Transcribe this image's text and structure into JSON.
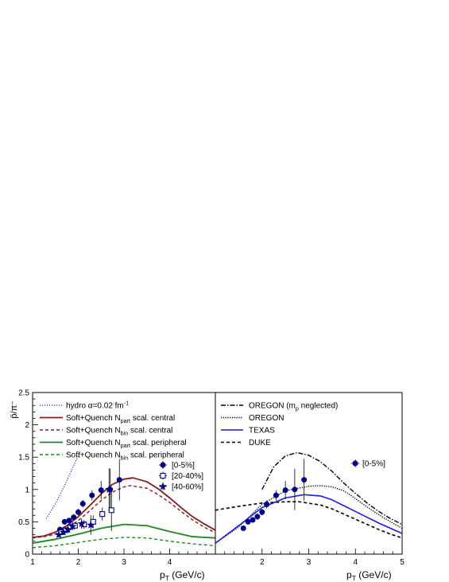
{
  "chart_data": [
    {
      "type": "line",
      "panel": "left",
      "xlabel_main": "p",
      "xlabel_sub": "T",
      "xlabel_unit": " (GeV/c)",
      "ylabel": "p̄/π⁻",
      "xlim": [
        1,
        5
      ],
      "ylim": [
        0,
        2.5
      ],
      "x_ticks": [
        1,
        2,
        3,
        4
      ],
      "y_ticks": [
        0,
        0.5,
        1,
        1.5,
        2,
        2.5
      ],
      "y_tick_labels": [
        "0",
        "0.5",
        "1",
        "1.5",
        "2",
        "2.5"
      ],
      "legend_position": "top-left",
      "curves": [
        {
          "legend_parts": [
            "hydro α=0.02 fm",
            "-1",
            ""
          ],
          "color": "#2222cc",
          "dash": "1.2,1.8",
          "width": 1.2,
          "x": [
            1.3,
            1.5,
            1.7,
            1.9,
            2.05
          ],
          "y": [
            0.55,
            0.78,
            1.06,
            1.37,
            1.6
          ]
        },
        {
          "legend_parts": [
            "Soft+Quench N",
            "part",
            " scal. central"
          ],
          "color": "#8b1a1a",
          "dash": "",
          "width": 1.8,
          "x": [
            1,
            1.25,
            1.5,
            1.75,
            2,
            2.25,
            2.5,
            2.75,
            3,
            3.2,
            3.5,
            3.75,
            4,
            4.25,
            4.5,
            4.75,
            5
          ],
          "y": [
            0.26,
            0.28,
            0.34,
            0.44,
            0.58,
            0.75,
            0.93,
            1.08,
            1.16,
            1.18,
            1.12,
            1.01,
            0.87,
            0.72,
            0.58,
            0.47,
            0.37
          ]
        },
        {
          "legend_parts": [
            "Soft+Quench N",
            "bin",
            " scal. central"
          ],
          "color": "#8b1a1a",
          "dash": "4,3",
          "width": 1.4,
          "x": [
            1,
            1.25,
            1.5,
            1.75,
            2,
            2.25,
            2.5,
            2.75,
            3,
            3.15,
            3.5,
            3.75,
            4,
            4.25,
            4.5,
            4.75,
            5
          ],
          "y": [
            0.25,
            0.27,
            0.31,
            0.4,
            0.52,
            0.67,
            0.83,
            0.96,
            1.04,
            1.06,
            1.02,
            0.92,
            0.8,
            0.66,
            0.53,
            0.42,
            0.33
          ]
        },
        {
          "legend_parts": [
            "Soft+Quench N",
            "part",
            " scal. peripheral"
          ],
          "color": "#1a8a1a",
          "dash": "",
          "width": 1.8,
          "x": [
            1,
            1.5,
            2,
            2.5,
            3,
            3.5,
            4,
            4.5,
            5
          ],
          "y": [
            0.17,
            0.23,
            0.31,
            0.4,
            0.46,
            0.44,
            0.35,
            0.27,
            0.25
          ]
        },
        {
          "legend_parts": [
            "Soft+Quench N",
            "bin",
            " scal. peripheral"
          ],
          "color": "#1a8a1a",
          "dash": "4,3",
          "width": 1.4,
          "x": [
            1,
            1.5,
            2,
            2.5,
            3,
            3.5,
            4,
            4.5,
            5
          ],
          "y": [
            0.1,
            0.13,
            0.18,
            0.23,
            0.26,
            0.25,
            0.2,
            0.16,
            0.13
          ]
        }
      ],
      "data_series": [
        {
          "name": "[0-5%]",
          "marker": "circle",
          "x": [
            1.6,
            1.7,
            1.8,
            1.9,
            2.0,
            2.1,
            2.3,
            2.5,
            2.7,
            2.9
          ],
          "y": [
            0.38,
            0.5,
            0.52,
            0.57,
            0.65,
            0.78,
            0.91,
            0.99,
            1.0,
            1.15
          ],
          "err": [
            0.04,
            0.04,
            0.04,
            0.05,
            0.05,
            0.06,
            0.08,
            0.14,
            0.32,
            0.32
          ]
        },
        {
          "name": "[20-40%]",
          "marker": "open-square",
          "x": [
            1.6,
            1.7,
            1.8,
            1.9,
            2.1,
            2.3,
            2.5,
            2.7
          ],
          "y": [
            0.34,
            0.37,
            0.42,
            0.44,
            0.46,
            0.5,
            0.62,
            0.68
          ],
          "err": [
            0.04,
            0.04,
            0.05,
            0.05,
            0.07,
            0.1,
            0.1,
            0.32
          ]
        },
        {
          "name": "[40-60%]",
          "marker": "star",
          "x": [
            1.6,
            1.7,
            1.8,
            1.9,
            2.1,
            2.3,
            2.7
          ],
          "y": [
            0.3,
            0.34,
            0.38,
            0.43,
            0.47,
            0.45,
            1.0
          ],
          "err": [
            0.04,
            0.04,
            0.05,
            0.05,
            0.08,
            0.15,
            0.33
          ]
        }
      ]
    },
    {
      "type": "line",
      "panel": "right",
      "xlabel_main": "p",
      "xlabel_sub": "T",
      "xlabel_unit": " (GeV/c)",
      "xlim": [
        1,
        5
      ],
      "ylim": [
        0,
        2.5
      ],
      "x_ticks": [
        2,
        3,
        4,
        5
      ],
      "legend_position": "top",
      "curves": [
        {
          "legend_parts": [
            "OREGON (m",
            "p",
            " neglected)"
          ],
          "color": "#000000",
          "dash": "6,2,1.5,2",
          "width": 1.4,
          "x": [
            2,
            2.25,
            2.5,
            2.75,
            3,
            3.25,
            3.5,
            3.75,
            4,
            4.25,
            4.5,
            4.75,
            5
          ],
          "y": [
            1.0,
            1.35,
            1.52,
            1.57,
            1.53,
            1.43,
            1.28,
            1.1,
            0.94,
            0.79,
            0.66,
            0.55,
            0.46
          ]
        },
        {
          "legend_parts": [
            "OREGON",
            "",
            ""
          ],
          "color": "#000000",
          "dash": "1.2,1.6",
          "width": 1.4,
          "x": [
            1,
            1.5,
            2,
            2.5,
            3,
            3.25,
            3.5,
            3.75,
            4,
            4.25,
            4.5,
            4.75,
            5
          ],
          "y": [
            0.17,
            0.42,
            0.77,
            0.98,
            1.05,
            1.06,
            1.04,
            0.98,
            0.86,
            0.73,
            0.61,
            0.5,
            0.4
          ]
        },
        {
          "legend_parts": [
            "TEXAS",
            "",
            ""
          ],
          "color": "#1a1aee",
          "dash": "",
          "width": 1.6,
          "x": [
            1,
            1.5,
            2,
            2.5,
            2.9,
            3.25,
            3.5,
            3.75,
            4,
            4.25,
            4.5,
            4.75,
            5
          ],
          "y": [
            0.17,
            0.44,
            0.72,
            0.87,
            0.92,
            0.9,
            0.84,
            0.75,
            0.66,
            0.57,
            0.48,
            0.4,
            0.32
          ]
        },
        {
          "legend_parts": [
            "DUKE",
            "",
            ""
          ],
          "color": "#000000",
          "dash": "4,3",
          "width": 1.6,
          "x": [
            1,
            1.5,
            2,
            2.5,
            2.8,
            3.25,
            3.5,
            3.75,
            4,
            4.25,
            4.5,
            4.75,
            5
          ],
          "y": [
            0.68,
            0.74,
            0.79,
            0.81,
            0.81,
            0.76,
            0.7,
            0.62,
            0.54,
            0.46,
            0.38,
            0.31,
            0.25
          ]
        }
      ],
      "data_series": [
        {
          "name": "[0-5%]",
          "marker": "circle",
          "x": [
            1.6,
            1.7,
            1.8,
            1.9,
            2.0,
            2.1,
            2.3,
            2.5,
            2.7,
            2.9
          ],
          "y": [
            0.4,
            0.5,
            0.53,
            0.58,
            0.65,
            0.77,
            0.91,
            0.99,
            1.0,
            1.15
          ],
          "err": [
            0.04,
            0.04,
            0.04,
            0.05,
            0.05,
            0.06,
            0.08,
            0.14,
            0.32,
            0.32
          ]
        }
      ]
    }
  ]
}
